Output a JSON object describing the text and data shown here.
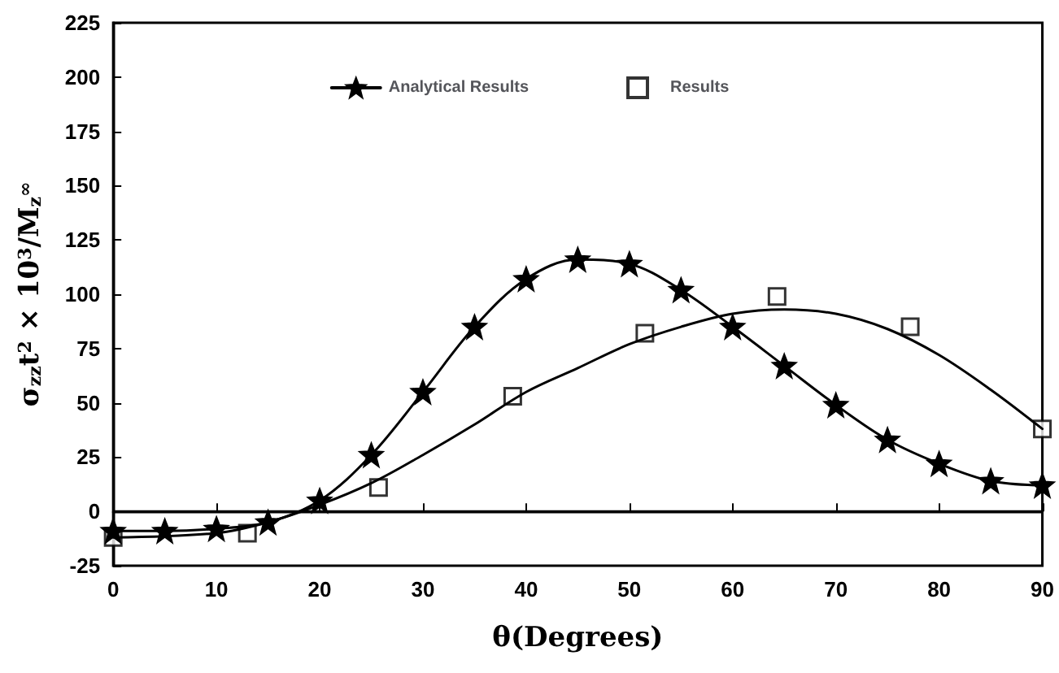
{
  "chart_data": {
    "type": "line",
    "xlabel": "θ(Degrees)",
    "ylabel": "σ$_{zz}$t$^{2}$ × 10$^{3}$/M$_{z}$$^{∞}$",
    "xlim": [
      0,
      90
    ],
    "xticks": [
      0,
      10,
      20,
      30,
      40,
      50,
      60,
      70,
      80,
      90
    ],
    "ylim": [
      -25,
      225
    ],
    "yticks": [
      -25,
      0,
      25,
      50,
      75,
      100,
      125,
      150,
      175,
      200,
      225
    ],
    "grid": false,
    "legend": "top",
    "line_style": "solid",
    "ref_lines": [
      {
        "axis": "y",
        "value": 0,
        "color": "#000000"
      }
    ],
    "series": [
      {
        "name": "Analytical Results",
        "type": "line",
        "marker": "star",
        "color": "#000000",
        "x": [
          0,
          5,
          10,
          15,
          20,
          25,
          30,
          35,
          40,
          45,
          50,
          55,
          60,
          65,
          70,
          75,
          80,
          85,
          90
        ],
        "values": [
          -9,
          -9,
          -8,
          -5,
          5,
          26,
          55,
          85,
          107,
          116,
          114,
          102,
          85,
          67,
          49,
          33,
          22,
          14,
          12
        ]
      },
      {
        "name": "Results",
        "type": "scatter",
        "marker": "square",
        "color": "#000000",
        "x": [
          0,
          13,
          25.7,
          38.7,
          51.5,
          64.3,
          77.2,
          90
        ],
        "values": [
          -12,
          -10,
          11,
          53,
          82,
          99,
          85,
          38
        ]
      },
      {
        "marker": "none",
        "color": "#000000",
        "x": [
          0,
          10,
          15,
          20,
          25,
          30,
          35,
          40,
          45,
          50,
          55,
          60,
          65,
          70,
          75,
          80,
          85,
          90
        ],
        "values": [
          -12,
          -10,
          -5,
          3,
          13,
          26,
          40,
          55,
          66,
          77,
          85,
          91,
          93,
          91,
          84,
          72,
          56,
          38
        ]
      }
    ]
  }
}
